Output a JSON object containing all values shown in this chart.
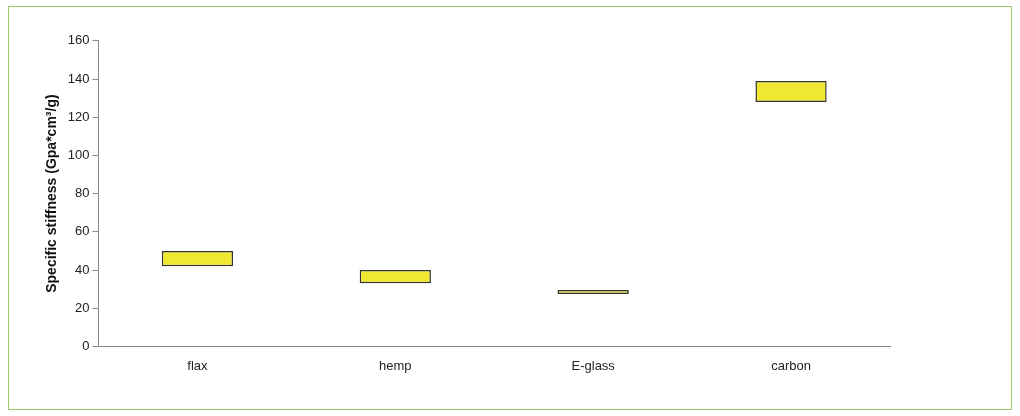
{
  "chart_data": {
    "type": "bar",
    "ylabel": "Specific stiffness (Gpa*cm³/g)",
    "categories": [
      "flax",
      "hemp",
      "E-glass",
      "carbon"
    ],
    "values": [
      8,
      7,
      2,
      11
    ],
    "base": [
      42,
      33,
      27.5,
      128
    ],
    "color": "#f0e830",
    "ylim": [
      0,
      160
    ],
    "yticks": [
      0,
      20,
      40,
      60,
      80,
      100,
      120,
      140,
      160
    ],
    "grid": false
  }
}
